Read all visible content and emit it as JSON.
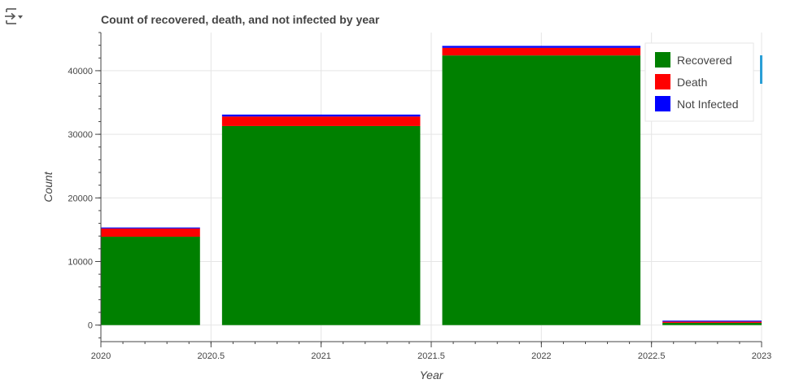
{
  "icons": {
    "output": "output-collapse-icon"
  },
  "chart_data": {
    "type": "bar",
    "stacked": true,
    "title": "Count of recovered, death, and not infected by year",
    "xlabel": "Year",
    "ylabel": "Count",
    "x": [
      2020,
      2021,
      2022,
      2023
    ],
    "series": [
      {
        "name": "Recovered",
        "color": "#008000",
        "values": [
          13900,
          31300,
          42400,
          350
        ]
      },
      {
        "name": "Death",
        "color": "#ff0000",
        "values": [
          1300,
          1500,
          1200,
          200
        ]
      },
      {
        "name": "Not Infected",
        "color": "#0000ff",
        "values": [
          150,
          300,
          300,
          150
        ]
      }
    ],
    "bar_width": 0.9,
    "xlim": [
      2020,
      2023
    ],
    "ylim": [
      -2600,
      46000
    ],
    "x_ticks": [
      "2020",
      "2020.5",
      "2021",
      "2021.5",
      "2022",
      "2022.5",
      "2023"
    ],
    "y_ticks": [
      "0",
      "10000",
      "20000",
      "30000",
      "40000"
    ],
    "grid": true,
    "legend_position": "top-right"
  }
}
